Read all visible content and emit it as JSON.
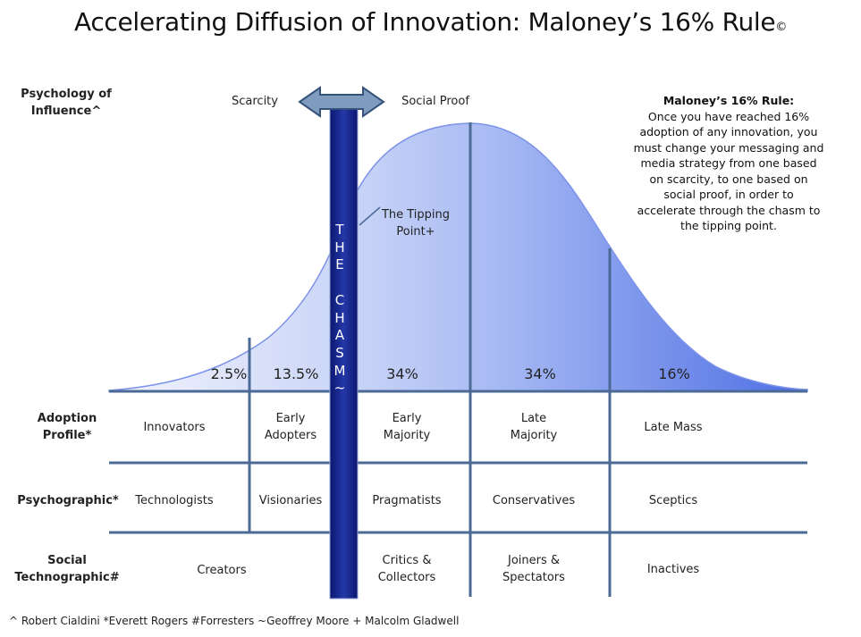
{
  "title": "Accelerating Diffusion of Innovation: Maloney’s 16% Rule",
  "title_mark": "©",
  "psychology_label": [
    "Psychology of",
    "Influence^"
  ],
  "scarcity": "Scarcity",
  "social_proof": "Social Proof",
  "tipping_point": [
    "The Tipping",
    "Point+"
  ],
  "chasm_letters": [
    "T",
    "H",
    "E",
    "",
    "C",
    "H",
    "A",
    "S",
    "M",
    "~"
  ],
  "percentages": [
    "2.5%",
    "13.5%",
    "34%",
    "34%",
    "16%"
  ],
  "rule": {
    "heading": "Maloney’s 16% Rule:",
    "lines": [
      "Once you have reached 16%",
      "adoption of any innovation, you",
      "must change your messaging and",
      "media strategy from one based",
      "on scarcity, to one based on",
      "social proof, in order to",
      "accelerate through the chasm to",
      "the tipping point."
    ]
  },
  "rows": {
    "adoption": {
      "label": [
        "Adoption",
        "Profile*"
      ],
      "cells": [
        [
          "Innovators"
        ],
        [
          "Early",
          "Adopters"
        ],
        [
          "Early",
          "Majority"
        ],
        [
          "Late",
          "Majority"
        ],
        [
          "Late Mass"
        ]
      ]
    },
    "psychographic": {
      "label": [
        "Psychographic*"
      ],
      "cells": [
        [
          "Technologists"
        ],
        [
          "Visionaries"
        ],
        [
          "Pragmatists"
        ],
        [
          "Conservatives"
        ],
        [
          "Sceptics"
        ]
      ]
    },
    "social": {
      "label": [
        "Social",
        "Technographic#"
      ],
      "cells": [
        [
          "Creators"
        ],
        [
          "Critics &",
          "Collectors"
        ],
        [
          "Joiners &",
          "Spectators"
        ],
        [
          "Inactives"
        ]
      ]
    }
  },
  "footnote": "^ Robert Cialdini *Everett Rogers  #Forresters ~Geoffrey Moore + Malcolm Gladwell",
  "colors": {
    "curve_light": "#e8ecfb",
    "curve_dark": "#5a78e6",
    "chasm_top": "#1e2f9a",
    "chasm_bottom": "#0c1770",
    "divider": "#4c6a96",
    "arrow_fill": "#7f9cbf",
    "arrow_stroke": "#34527a"
  }
}
